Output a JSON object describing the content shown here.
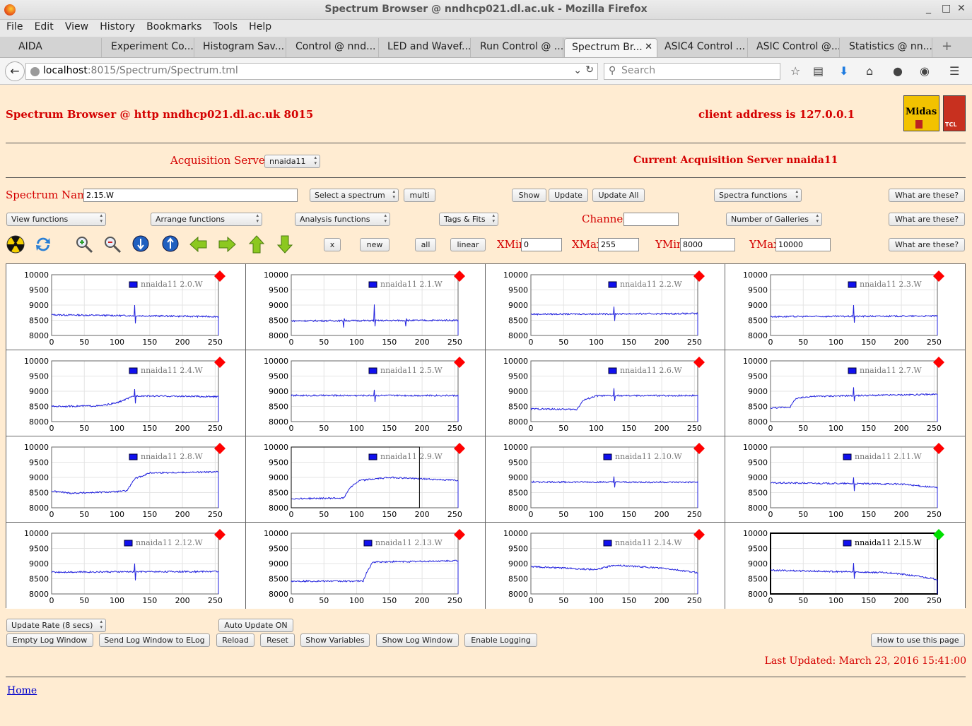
{
  "window": {
    "title": "Spectrum Browser @ nndhcp021.dl.ac.uk - Mozilla Firefox",
    "minimize": "_",
    "maximize": "□",
    "close": "✕"
  },
  "menu": [
    "File",
    "Edit",
    "View",
    "History",
    "Bookmarks",
    "Tools",
    "Help"
  ],
  "tabs": [
    "AIDA",
    "Experiment Co...",
    "Histogram Sav...",
    "Control @ nnd...",
    "LED and Wavef...",
    "Run Control @ ...",
    "Spectrum Br...",
    "ASIC4 Control ...",
    "ASIC Control @...",
    "Statistics @ nn..."
  ],
  "tab_close": "✕",
  "new_tab": "+",
  "url": {
    "host": "localhost",
    "path": ":8015/Spectrum/Spectrum.tml"
  },
  "search_placeholder": "Search",
  "page": {
    "heading": "Spectrum Browser @ http nndhcp021.dl.ac.uk 8015",
    "client_address": "client address is 127.0.0.1",
    "logo_text": "Midas",
    "tcl_text": "TCL",
    "acq_label": "Acquisition Servers",
    "acq_select": "nnaida11",
    "current_server": "Current Acquisition Server nnaida11",
    "spectrum_name_label": "Spectrum Name:",
    "spectrum_name_value": "2.15.W",
    "select_spectrum": "Select a spectrum",
    "multi": "multi",
    "show": "Show",
    "update": "Update",
    "update_all": "Update All",
    "spectra_functions": "Spectra functions",
    "what_are_these": "What are these?",
    "view_functions": "View functions",
    "arrange_functions": "Arrange functions",
    "analysis_functions": "Analysis functions",
    "tags_fits": "Tags & Fits",
    "channel_label": "Channel:",
    "channel_value": "",
    "number_of_galleries": "Number of Galleries",
    "btn_x": "x",
    "btn_new": "new",
    "btn_all": "all",
    "btn_linear": "linear",
    "xmin_label": "XMin",
    "xmin_value": "0",
    "xmax_label": "XMax",
    "xmax_value": "255",
    "ymin_label": "YMin",
    "ymin_value": "8000",
    "ymax_label": "YMax",
    "ymax_value": "10000",
    "update_rate": "Update Rate (8 secs)",
    "auto_update": "Auto Update ON",
    "empty_log": "Empty Log Window",
    "send_log": "Send Log Window to ELog",
    "reload": "Reload",
    "reset": "Reset",
    "show_variables": "Show Variables",
    "show_log": "Show Log Window",
    "enable_logging": "Enable Logging",
    "how_to_use": "How to use this page",
    "last_updated": "Last Updated: March 23, 2016 15:41:00",
    "home": "Home"
  },
  "toolbar_icons": [
    "radiation-icon",
    "refresh-icon",
    "zoom-in-icon",
    "zoom-out-icon",
    "arrow-down-circle-icon",
    "arrow-up-circle-icon",
    "arrow-left-icon",
    "arrow-right-icon",
    "arrow-up-icon",
    "arrow-down-icon"
  ],
  "colors": {
    "accent_red": "#d40000",
    "page_bg": "#ffecd2",
    "trace": "#2020dd",
    "marker_red": "#ff0000",
    "marker_green": "#00e000"
  },
  "chart_data": {
    "type": "line",
    "x_ticks": [
      "0",
      "50",
      "100",
      "150",
      "200",
      "250"
    ],
    "y_ticks": [
      "10000",
      "9500",
      "9000",
      "8500",
      "8000"
    ],
    "xlim": [
      0,
      255
    ],
    "ylim": [
      8000,
      10000
    ],
    "grid": true,
    "legend_position": "top-right",
    "panels": [
      {
        "name": "nnaida11 2.0.W",
        "status": "red",
        "shape": [
          [
            0,
            8680
          ],
          [
            255,
            8620
          ]
        ],
        "spikes": [
          [
            127,
            9000,
            8400
          ]
        ]
      },
      {
        "name": "nnaida11 2.1.W",
        "status": "red",
        "shape": [
          [
            0,
            8480
          ],
          [
            255,
            8500
          ]
        ],
        "spikes": [
          [
            80,
            8260,
            8560
          ],
          [
            127,
            9020,
            8300
          ],
          [
            175,
            8300,
            8560
          ]
        ]
      },
      {
        "name": "nnaida11 2.2.W",
        "status": "red",
        "shape": [
          [
            0,
            8700
          ],
          [
            255,
            8720
          ]
        ],
        "spikes": [
          [
            127,
            8950,
            8480
          ]
        ]
      },
      {
        "name": "nnaida11 2.3.W",
        "status": "red",
        "shape": [
          [
            0,
            8620
          ],
          [
            255,
            8640
          ]
        ],
        "spikes": [
          [
            127,
            9000,
            8420
          ]
        ]
      },
      {
        "name": "nnaida11 2.4.W",
        "status": "red",
        "shape": [
          [
            0,
            8500
          ],
          [
            75,
            8520
          ],
          [
            100,
            8620
          ],
          [
            127,
            8850
          ],
          [
            255,
            8820
          ]
        ],
        "spikes": [
          [
            127,
            9070,
            8600
          ]
        ]
      },
      {
        "name": "nnaida11 2.5.W",
        "status": "red",
        "shape": [
          [
            0,
            8860
          ],
          [
            255,
            8860
          ]
        ],
        "spikes": [
          [
            127,
            9050,
            8650
          ]
        ]
      },
      {
        "name": "nnaida11 2.6.W",
        "status": "red",
        "shape": [
          [
            0,
            8420
          ],
          [
            70,
            8400
          ],
          [
            80,
            8700
          ],
          [
            100,
            8850
          ],
          [
            255,
            8860
          ]
        ],
        "spikes": [
          [
            127,
            9100,
            8680
          ]
        ]
      },
      {
        "name": "nnaida11 2.7.W",
        "status": "red",
        "shape": [
          [
            0,
            8450
          ],
          [
            30,
            8480
          ],
          [
            38,
            8750
          ],
          [
            60,
            8830
          ],
          [
            255,
            8900
          ]
        ],
        "spikes": [
          [
            127,
            9130,
            8670
          ]
        ]
      },
      {
        "name": "nnaida11 2.8.W",
        "status": "red",
        "shape": [
          [
            0,
            8550
          ],
          [
            30,
            8480
          ],
          [
            100,
            8530
          ],
          [
            115,
            8560
          ],
          [
            127,
            8950
          ],
          [
            150,
            9150
          ],
          [
            255,
            9180
          ]
        ],
        "spikes": []
      },
      {
        "name": "nnaida11 2.9.W",
        "status": "red",
        "shape": [
          [
            0,
            8300
          ],
          [
            80,
            8320
          ],
          [
            90,
            8680
          ],
          [
            105,
            8900
          ],
          [
            150,
            9000
          ],
          [
            255,
            8900
          ]
        ],
        "spikes": [],
        "selected_box": true
      },
      {
        "name": "nnaida11 2.10.W",
        "status": "red",
        "shape": [
          [
            0,
            8850
          ],
          [
            255,
            8840
          ]
        ],
        "spikes": [
          [
            127,
            9030,
            8670
          ]
        ]
      },
      {
        "name": "nnaida11 2.11.W",
        "status": "red",
        "shape": [
          [
            0,
            8820
          ],
          [
            200,
            8780
          ],
          [
            255,
            8660
          ]
        ],
        "spikes": [
          [
            127,
            9000,
            8550
          ]
        ]
      },
      {
        "name": "nnaida11 2.12.W",
        "status": "red",
        "shape": [
          [
            0,
            8720
          ],
          [
            255,
            8740
          ]
        ],
        "spikes": [
          [
            127,
            9000,
            8450
          ]
        ]
      },
      {
        "name": "nnaida11 2.13.W",
        "status": "red",
        "shape": [
          [
            0,
            8420
          ],
          [
            110,
            8420
          ],
          [
            115,
            8700
          ],
          [
            125,
            9050
          ],
          [
            255,
            9090
          ]
        ],
        "spikes": []
      },
      {
        "name": "nnaida11 2.14.W",
        "status": "red",
        "shape": [
          [
            0,
            8900
          ],
          [
            100,
            8800
          ],
          [
            127,
            8950
          ],
          [
            200,
            8850
          ],
          [
            255,
            8700
          ]
        ],
        "spikes": []
      },
      {
        "name": "nnaida11 2.15.W",
        "status": "green",
        "shape": [
          [
            0,
            8780
          ],
          [
            180,
            8700
          ],
          [
            220,
            8600
          ],
          [
            255,
            8480
          ]
        ],
        "spikes": [
          [
            127,
            9020,
            8500
          ]
        ],
        "selected": true
      }
    ]
  }
}
